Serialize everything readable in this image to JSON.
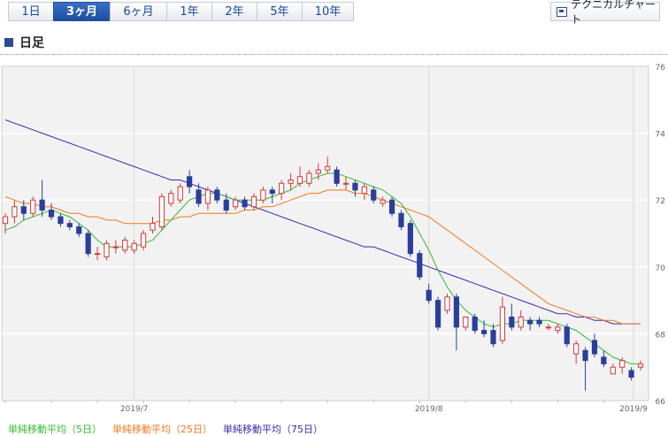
{
  "tabs": [
    {
      "label": "1日",
      "active": false
    },
    {
      "label": "3ヶ月",
      "active": true
    },
    {
      "label": "6ヶ月",
      "active": false
    },
    {
      "label": "1年",
      "active": false
    },
    {
      "label": "2年",
      "active": false
    },
    {
      "label": "5年",
      "active": false
    },
    {
      "label": "10年",
      "active": false
    }
  ],
  "tech_chart_label": "テクニカルチャート",
  "section_title": "日足",
  "chart_data": {
    "type": "candlestick",
    "ylim": [
      66,
      76
    ],
    "yticks": [
      "66",
      "68",
      "70",
      "72",
      "74",
      "76"
    ],
    "xticks": [
      "2019/7",
      "2019/8",
      "2019/9"
    ],
    "legend_position": "bottom-left",
    "grid": true,
    "colors": {
      "up": "#d03a3a",
      "down": "#2a3f9a",
      "ma5": "#33bb33",
      "ma25": "#f07a20",
      "ma75": "#3a2aa8"
    },
    "legend": [
      {
        "label": "単純移動平均（5日）",
        "color": "#33bb33"
      },
      {
        "label": "単純移動平均（25日）",
        "color": "#f07a20"
      },
      {
        "label": "単純移動平均（75日）",
        "color": "#3a2aa8"
      }
    ],
    "candles": [
      [
        71.3,
        71.6,
        71.0,
        71.5
      ],
      [
        71.5,
        72.0,
        71.3,
        71.8
      ],
      [
        71.8,
        72.0,
        71.4,
        71.6
      ],
      [
        71.6,
        72.1,
        71.5,
        72.0
      ],
      [
        72.0,
        72.6,
        71.5,
        71.7
      ],
      [
        71.7,
        71.9,
        71.4,
        71.5
      ],
      [
        71.5,
        71.6,
        71.2,
        71.3
      ],
      [
        71.3,
        71.4,
        71.1,
        71.2
      ],
      [
        71.2,
        71.3,
        70.9,
        71.0
      ],
      [
        71.0,
        71.1,
        70.3,
        70.4
      ],
      [
        70.4,
        70.6,
        70.2,
        70.4
      ],
      [
        70.3,
        70.8,
        70.2,
        70.7
      ],
      [
        70.6,
        70.8,
        70.4,
        70.6
      ],
      [
        70.5,
        70.9,
        70.4,
        70.8
      ],
      [
        70.5,
        70.8,
        70.4,
        70.7
      ],
      [
        70.6,
        71.1,
        70.5,
        71.0
      ],
      [
        71.1,
        71.5,
        71.0,
        71.3
      ],
      [
        71.2,
        72.2,
        71.1,
        72.1
      ],
      [
        71.9,
        72.3,
        71.8,
        72.2
      ],
      [
        72.0,
        72.5,
        71.9,
        72.4
      ],
      [
        72.7,
        72.9,
        72.2,
        72.4
      ],
      [
        72.3,
        72.5,
        71.8,
        71.9
      ],
      [
        71.9,
        72.4,
        71.7,
        72.3
      ],
      [
        72.3,
        72.4,
        71.9,
        72.0
      ],
      [
        72.0,
        72.2,
        71.6,
        71.7
      ],
      [
        71.8,
        72.1,
        71.7,
        72.0
      ],
      [
        72.0,
        72.1,
        71.7,
        71.8
      ],
      [
        71.8,
        72.2,
        71.7,
        72.1
      ],
      [
        72.0,
        72.4,
        71.9,
        72.3
      ],
      [
        72.3,
        72.4,
        71.9,
        72.2
      ],
      [
        72.2,
        72.6,
        72.0,
        72.5
      ],
      [
        72.5,
        72.8,
        72.3,
        72.6
      ],
      [
        72.5,
        73.0,
        72.4,
        72.7
      ],
      [
        72.5,
        72.9,
        72.4,
        72.8
      ],
      [
        72.8,
        73.1,
        72.6,
        72.9
      ],
      [
        72.9,
        73.3,
        72.8,
        73.0
      ],
      [
        72.9,
        73.0,
        72.4,
        72.5
      ],
      [
        72.5,
        72.7,
        72.3,
        72.5
      ],
      [
        72.5,
        72.6,
        72.1,
        72.3
      ],
      [
        72.2,
        72.5,
        72.0,
        72.4
      ],
      [
        72.3,
        72.4,
        71.9,
        72.0
      ],
      [
        71.9,
        72.1,
        71.8,
        72.0
      ],
      [
        72.0,
        72.1,
        71.5,
        71.6
      ],
      [
        71.6,
        71.7,
        71.1,
        71.2
      ],
      [
        71.3,
        71.4,
        70.3,
        70.4
      ],
      [
        70.4,
        70.5,
        69.6,
        69.7
      ],
      [
        69.3,
        69.5,
        68.9,
        69.0
      ],
      [
        69.0,
        69.1,
        68.1,
        68.2
      ],
      [
        68.7,
        69.2,
        68.6,
        69.1
      ],
      [
        69.1,
        69.2,
        67.5,
        68.2
      ],
      [
        68.2,
        68.5,
        68.1,
        68.5
      ],
      [
        68.5,
        68.6,
        68.0,
        68.1
      ],
      [
        68.1,
        68.4,
        67.9,
        68.0
      ],
      [
        68.1,
        68.3,
        67.6,
        67.7
      ],
      [
        67.8,
        69.1,
        67.7,
        68.8
      ],
      [
        68.5,
        68.9,
        68.1,
        68.2
      ],
      [
        68.2,
        68.7,
        68.1,
        68.5
      ],
      [
        68.4,
        68.5,
        68.1,
        68.3
      ],
      [
        68.4,
        68.5,
        68.2,
        68.3
      ],
      [
        68.2,
        68.3,
        68.1,
        68.2
      ],
      [
        68.1,
        68.3,
        68.0,
        68.2
      ],
      [
        68.2,
        68.3,
        67.6,
        67.7
      ],
      [
        67.4,
        67.8,
        67.1,
        67.7
      ],
      [
        67.5,
        67.6,
        66.3,
        67.2
      ],
      [
        67.8,
        68.0,
        67.3,
        67.4
      ],
      [
        67.3,
        67.5,
        67.0,
        67.1
      ],
      [
        66.8,
        67.1,
        66.8,
        67.0
      ],
      [
        67.0,
        67.3,
        66.8,
        67.2
      ],
      [
        66.9,
        67.0,
        66.6,
        66.7
      ],
      [
        67.0,
        67.2,
        66.9,
        67.1
      ]
    ],
    "ma5": [
      71.1,
      71.2,
      71.4,
      71.5,
      71.6,
      71.7,
      71.6,
      71.5,
      71.3,
      71.1,
      70.8,
      70.6,
      70.6,
      70.6,
      70.6,
      70.7,
      70.8,
      71.1,
      71.4,
      71.7,
      72.0,
      72.1,
      72.2,
      72.2,
      72.1,
      72.0,
      72.0,
      72.0,
      72.0,
      72.1,
      72.2,
      72.3,
      72.5,
      72.6,
      72.7,
      72.8,
      72.8,
      72.7,
      72.6,
      72.5,
      72.4,
      72.3,
      72.1,
      71.9,
      71.5,
      71.0,
      70.5,
      69.9,
      69.4,
      69.0,
      68.7,
      68.5,
      68.3,
      68.2,
      68.3,
      68.3,
      68.4,
      68.4,
      68.4,
      68.4,
      68.3,
      68.2,
      68.1,
      67.9,
      67.7,
      67.5,
      67.3,
      67.2,
      67.1,
      67.1
    ],
    "ma25": [
      72.1,
      72.0,
      71.9,
      71.9,
      71.8,
      71.8,
      71.7,
      71.6,
      71.6,
      71.5,
      71.5,
      71.4,
      71.4,
      71.3,
      71.3,
      71.3,
      71.3,
      71.4,
      71.4,
      71.5,
      71.5,
      71.6,
      71.6,
      71.6,
      71.6,
      71.6,
      71.7,
      71.7,
      71.8,
      71.8,
      71.9,
      72.0,
      72.1,
      72.2,
      72.2,
      72.3,
      72.3,
      72.3,
      72.2,
      72.2,
      72.1,
      72.0,
      71.9,
      71.8,
      71.7,
      71.6,
      71.5,
      71.3,
      71.1,
      70.9,
      70.7,
      70.5,
      70.3,
      70.1,
      69.9,
      69.7,
      69.5,
      69.3,
      69.1,
      68.9,
      68.8,
      68.7,
      68.6,
      68.5,
      68.5,
      68.4,
      68.4,
      68.3,
      68.3,
      68.3
    ],
    "ma75": [
      74.4,
      74.3,
      74.2,
      74.1,
      74.0,
      73.9,
      73.8,
      73.7,
      73.6,
      73.5,
      73.4,
      73.3,
      73.2,
      73.1,
      73.0,
      72.9,
      72.8,
      72.7,
      72.6,
      72.6,
      72.5,
      72.4,
      72.3,
      72.2,
      72.1,
      72.0,
      71.9,
      71.8,
      71.7,
      71.6,
      71.5,
      71.4,
      71.3,
      71.2,
      71.1,
      71.0,
      70.9,
      70.8,
      70.7,
      70.6,
      70.6,
      70.5,
      70.4,
      70.3,
      70.2,
      70.1,
      70.0,
      69.9,
      69.8,
      69.7,
      69.6,
      69.5,
      69.4,
      69.3,
      69.2,
      69.1,
      69.0,
      68.9,
      68.8,
      68.7,
      68.6,
      68.6,
      68.5,
      68.5,
      68.4,
      68.4,
      68.3,
      68.3,
      68.3,
      68.3
    ]
  }
}
